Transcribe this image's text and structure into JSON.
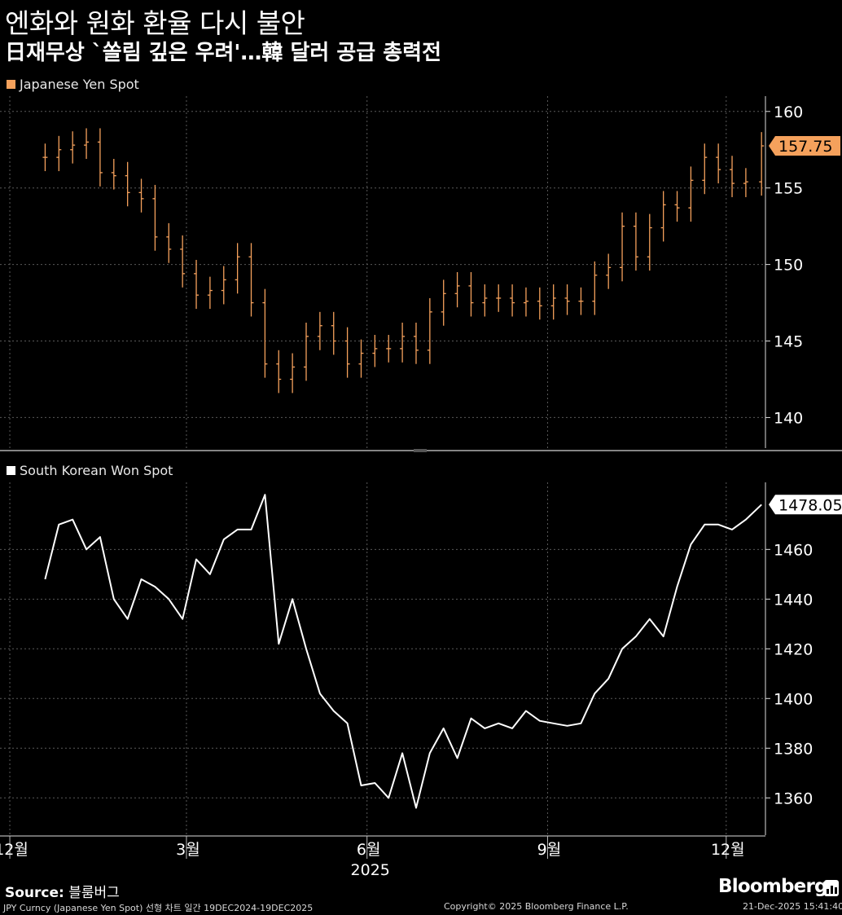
{
  "header": {
    "title": "엔화와 원화 환율 다시 불안",
    "subtitle": "日재무상 `쏠림 깊은 우려'…韓 달러 공급 총력전"
  },
  "source": {
    "label": "Source:",
    "value": "블룸버그"
  },
  "footer": {
    "left": "JPY Curncy (Japanese Yen Spot) 선형 차트 일간 19DEC2024-19DEC2025",
    "center": "Copyright© 2025 Bloomberg Finance L.P.",
    "right": "21-Dec-2025 15:41:40"
  },
  "brand": {
    "name": "Bloomberg",
    "icon": "bloomberg-terminal-icon"
  },
  "colors": {
    "yen": "#f5a15c",
    "won": "#ffffff",
    "grid": "#5a5a5a",
    "background": "#000000"
  },
  "chart_data": [
    {
      "type": "ohlc",
      "series_name": "Japanese Yen Spot",
      "color": "#f5a15c",
      "last_value": "157.75",
      "ylim": [
        138,
        161
      ],
      "yticks": [
        140,
        145,
        150,
        155,
        160
      ],
      "x": [
        "2024-12-19",
        "2024-12-26",
        "2025-01-02",
        "2025-01-09",
        "2025-01-16",
        "2025-01-23",
        "2025-01-30",
        "2025-02-06",
        "2025-02-13",
        "2025-02-20",
        "2025-02-27",
        "2025-03-06",
        "2025-03-13",
        "2025-03-20",
        "2025-03-27",
        "2025-04-03",
        "2025-04-10",
        "2025-04-17",
        "2025-04-24",
        "2025-05-01",
        "2025-05-08",
        "2025-05-15",
        "2025-05-22",
        "2025-05-29",
        "2025-06-05",
        "2025-06-12",
        "2025-06-19",
        "2025-06-26",
        "2025-07-03",
        "2025-07-10",
        "2025-07-17",
        "2025-07-24",
        "2025-07-31",
        "2025-08-07",
        "2025-08-14",
        "2025-08-21",
        "2025-08-28",
        "2025-09-04",
        "2025-09-11",
        "2025-09-18",
        "2025-09-25",
        "2025-10-02",
        "2025-10-09",
        "2025-10-16",
        "2025-10-23",
        "2025-10-30",
        "2025-11-06",
        "2025-11-13",
        "2025-11-20",
        "2025-11-27",
        "2025-12-04",
        "2025-12-11",
        "2025-12-19"
      ],
      "values": [
        157.0,
        157.5,
        157.8,
        158.0,
        156.0,
        155.8,
        154.7,
        154.3,
        151.8,
        151.0,
        149.4,
        148.0,
        148.3,
        149.0,
        150.5,
        147.5,
        143.5,
        142.5,
        143.3,
        145.3,
        146.0,
        145.0,
        143.5,
        144.2,
        144.5,
        144.5,
        145.3,
        144.4,
        146.9,
        148.1,
        148.6,
        147.5,
        147.8,
        147.8,
        147.5,
        147.6,
        147.3,
        147.8,
        147.6,
        147.6,
        149.3,
        149.8,
        152.5,
        150.5,
        152.4,
        153.9,
        153.7,
        155.5,
        157.0,
        156.2,
        155.3,
        155.4,
        157.75
      ]
    },
    {
      "type": "line",
      "series_name": "South Korean Won Spot",
      "color": "#ffffff",
      "last_value": "1478.05",
      "ylim": [
        1345,
        1487
      ],
      "yticks": [
        1360,
        1380,
        1400,
        1420,
        1440,
        1460
      ],
      "x": [
        "2024-12-19",
        "2024-12-26",
        "2025-01-02",
        "2025-01-09",
        "2025-01-16",
        "2025-01-23",
        "2025-01-30",
        "2025-02-06",
        "2025-02-13",
        "2025-02-20",
        "2025-02-27",
        "2025-03-06",
        "2025-03-13",
        "2025-03-20",
        "2025-03-27",
        "2025-04-03",
        "2025-04-10",
        "2025-04-17",
        "2025-04-24",
        "2025-05-01",
        "2025-05-08",
        "2025-05-15",
        "2025-05-22",
        "2025-05-29",
        "2025-06-05",
        "2025-06-12",
        "2025-06-19",
        "2025-06-26",
        "2025-07-03",
        "2025-07-10",
        "2025-07-17",
        "2025-07-24",
        "2025-07-31",
        "2025-08-07",
        "2025-08-14",
        "2025-08-21",
        "2025-08-28",
        "2025-09-04",
        "2025-09-11",
        "2025-09-18",
        "2025-09-25",
        "2025-10-02",
        "2025-10-09",
        "2025-10-16",
        "2025-10-23",
        "2025-10-30",
        "2025-11-06",
        "2025-11-13",
        "2025-11-20",
        "2025-11-27",
        "2025-12-04",
        "2025-12-11",
        "2025-12-19"
      ],
      "values": [
        1448,
        1470,
        1472,
        1460,
        1465,
        1440,
        1432,
        1448,
        1445,
        1440,
        1432,
        1456,
        1450,
        1464,
        1468,
        1468,
        1482,
        1422,
        1440,
        1420,
        1402,
        1395,
        1390,
        1365,
        1366,
        1360,
        1378,
        1356,
        1378,
        1388,
        1376,
        1392,
        1388,
        1390,
        1388,
        1395,
        1391,
        1390,
        1389,
        1390,
        1402,
        1408,
        1420,
        1425,
        1432,
        1425,
        1445,
        1462,
        1470,
        1470,
        1468,
        1472,
        1478.05
      ]
    }
  ],
  "x_axis": {
    "ticks": [
      {
        "label": "12월",
        "date": "2024-12-01"
      },
      {
        "label": "3월",
        "date": "2025-03-01"
      },
      {
        "label": "6월",
        "date": "2025-06-01"
      },
      {
        "label": "9월",
        "date": "2025-09-01"
      },
      {
        "label": "12월",
        "date": "2025-12-01"
      }
    ],
    "year_label": "2025",
    "year_date": "2025-06-01",
    "range": [
      "2024-11-26",
      "2025-12-21"
    ]
  }
}
